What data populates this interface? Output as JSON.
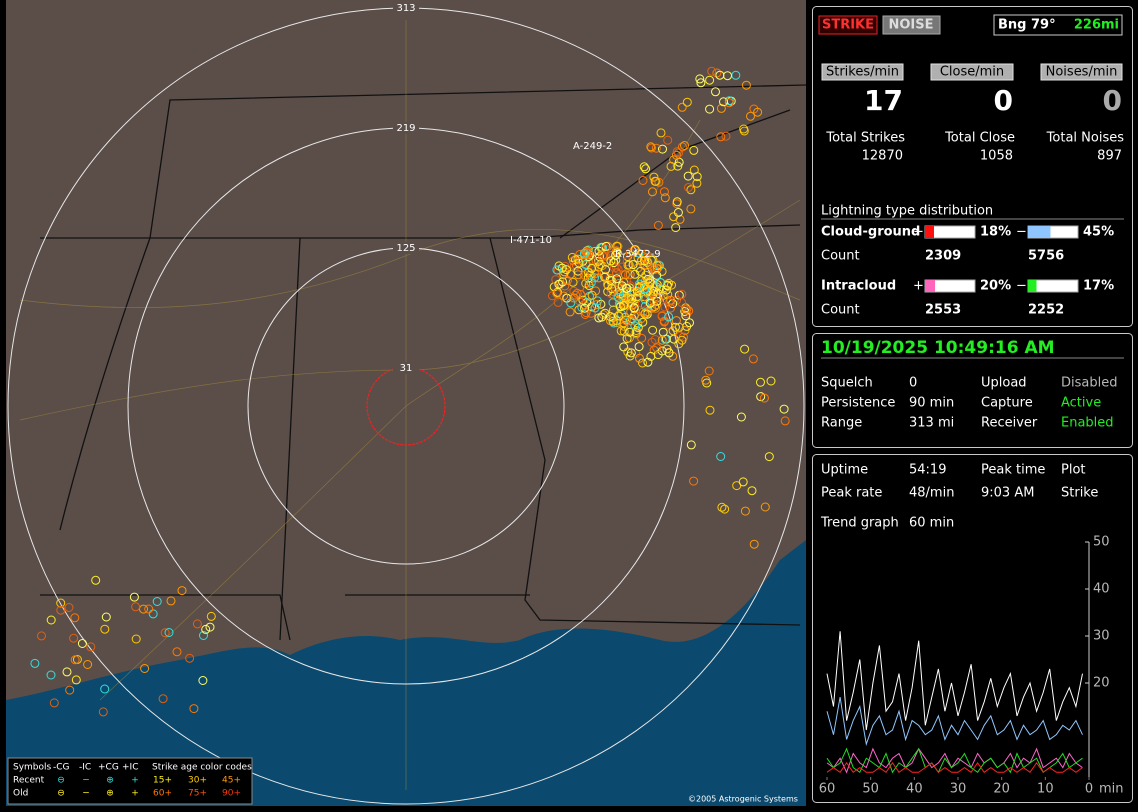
{
  "map": {
    "range_labels": [
      "313",
      "219",
      "125",
      "31"
    ],
    "storm_labels": [
      "A-249-2",
      "I-471-10",
      "R-3472-9"
    ],
    "copyright": "©2005 Astrogenic Systems",
    "legend": {
      "header": [
        "Symbols",
        "-CG",
        "-IC",
        "+CG",
        "+IC",
        "Strike age color codes"
      ],
      "rows": [
        {
          "name": "Recent",
          "symbols": [
            "⊖",
            "−",
            "⊕",
            "+"
          ],
          "ages": [
            "15+",
            "30+",
            "45+"
          ]
        },
        {
          "name": "Old",
          "symbols": [
            "⊖",
            "−",
            "⊕",
            "+"
          ],
          "ages": [
            "60+",
            "75+",
            "90+"
          ]
        }
      ]
    }
  },
  "status": {
    "buttons": [
      "STRIKE",
      "NOISE"
    ],
    "bearing": "Bng 79°",
    "distance": "226mi"
  },
  "rates": [
    {
      "label": "Strikes/min",
      "value": 17
    },
    {
      "label": "Close/min",
      "value": 0
    },
    {
      "label": "Noises/min",
      "value": 0
    }
  ],
  "totals": [
    {
      "label": "Total Strikes",
      "value": 12870
    },
    {
      "label": "Total Close",
      "value": 1058
    },
    {
      "label": "Total Noises",
      "value": 897
    }
  ],
  "distribution": {
    "title": "Lightning type distribution",
    "count_label": "Count",
    "rows": [
      {
        "name": "Cloud-ground",
        "plus": {
          "value": 18,
          "label": "18%"
        },
        "minus": {
          "value": 45,
          "label": "45%"
        },
        "plus_count": 2309,
        "minus_count": 5756
      },
      {
        "name": "Intracloud",
        "plus": {
          "value": 20,
          "label": "20%"
        },
        "minus": {
          "value": 17,
          "label": "17%"
        },
        "plus_count": 2553,
        "minus_count": 2252
      }
    ],
    "signs": [
      "+",
      "−"
    ]
  },
  "clock": "10/19/2025 10:49:16 AM",
  "settings": [
    [
      "Squelch",
      "0",
      "Upload",
      "Disabled"
    ],
    [
      "Persistence",
      "90 min",
      "Capture",
      "Active"
    ],
    [
      "Range",
      "313 mi",
      "Receiver",
      "Enabled"
    ]
  ],
  "stats": [
    [
      "Uptime",
      "54:19",
      "Peak time",
      "Plot"
    ],
    [
      "Peak rate",
      "48/min",
      "9:03 AM",
      "Strike"
    ],
    [
      "Trend graph",
      "60 min"
    ]
  ],
  "trend": {
    "type": "line",
    "x_unit": "min",
    "xlim": [
      60,
      0
    ],
    "xticks": [
      60,
      50,
      40,
      30,
      20,
      10,
      0
    ],
    "ylim": [
      0,
      50
    ],
    "yticks": [
      20,
      30,
      40,
      50
    ],
    "x": [
      60,
      58.5,
      57,
      55.5,
      54,
      52.5,
      51,
      49.5,
      48,
      46.5,
      45,
      43.5,
      42,
      40.5,
      39,
      37.5,
      36,
      34.5,
      33,
      31.5,
      30,
      28.5,
      27,
      25.5,
      24,
      22.5,
      21,
      19.5,
      18,
      16.5,
      15,
      13.5,
      12,
      10.5,
      9,
      7.5,
      6,
      4.5,
      3,
      1.5
    ],
    "series": [
      {
        "color": "#ffffff",
        "values": [
          22,
          15,
          31,
          12,
          18,
          25,
          10,
          20,
          28,
          14,
          16,
          22,
          12,
          19,
          29,
          11,
          17,
          23,
          14,
          20,
          13,
          18,
          24,
          12,
          16,
          21,
          15,
          19,
          22,
          13,
          17,
          20,
          14,
          18,
          23,
          12,
          16,
          19,
          15,
          22
        ]
      },
      {
        "color": "#8fc6ff",
        "values": [
          14,
          9,
          17,
          8,
          12,
          15,
          7,
          11,
          13,
          9,
          10,
          14,
          8,
          12,
          11,
          9,
          10,
          13,
          8,
          11,
          9,
          12,
          10,
          8,
          11,
          13,
          9,
          10,
          12,
          8,
          11,
          9,
          10,
          12,
          8,
          9,
          11,
          10,
          12,
          9
        ]
      },
      {
        "color": "#ff66cc",
        "values": [
          3,
          2,
          4,
          1,
          5,
          3,
          2,
          6,
          3,
          2,
          4,
          5,
          2,
          3,
          6,
          4,
          2,
          3,
          5,
          2,
          4,
          3,
          2,
          5,
          3,
          4,
          2,
          3,
          5,
          2,
          4,
          3,
          6,
          2,
          3,
          4,
          2,
          5,
          3,
          2
        ]
      },
      {
        "color": "#22dd22",
        "values": [
          4,
          2,
          3,
          6,
          2,
          1,
          4,
          3,
          2,
          5,
          1,
          3,
          2,
          4,
          6,
          2,
          3,
          1,
          4,
          2,
          3,
          5,
          2,
          1,
          3,
          4,
          2,
          3,
          1,
          5,
          2,
          3,
          4,
          1,
          2,
          3,
          5,
          2,
          3,
          4
        ]
      },
      {
        "color": "#ff2222",
        "values": [
          1,
          2,
          1,
          3,
          1,
          2,
          1,
          1,
          2,
          1,
          3,
          1,
          2,
          1,
          1,
          2,
          3,
          1,
          2,
          1,
          1,
          2,
          1,
          3,
          1,
          2,
          1,
          1,
          2,
          1,
          2,
          1,
          3,
          1,
          2,
          1,
          1,
          2,
          1,
          2
        ]
      }
    ]
  }
}
